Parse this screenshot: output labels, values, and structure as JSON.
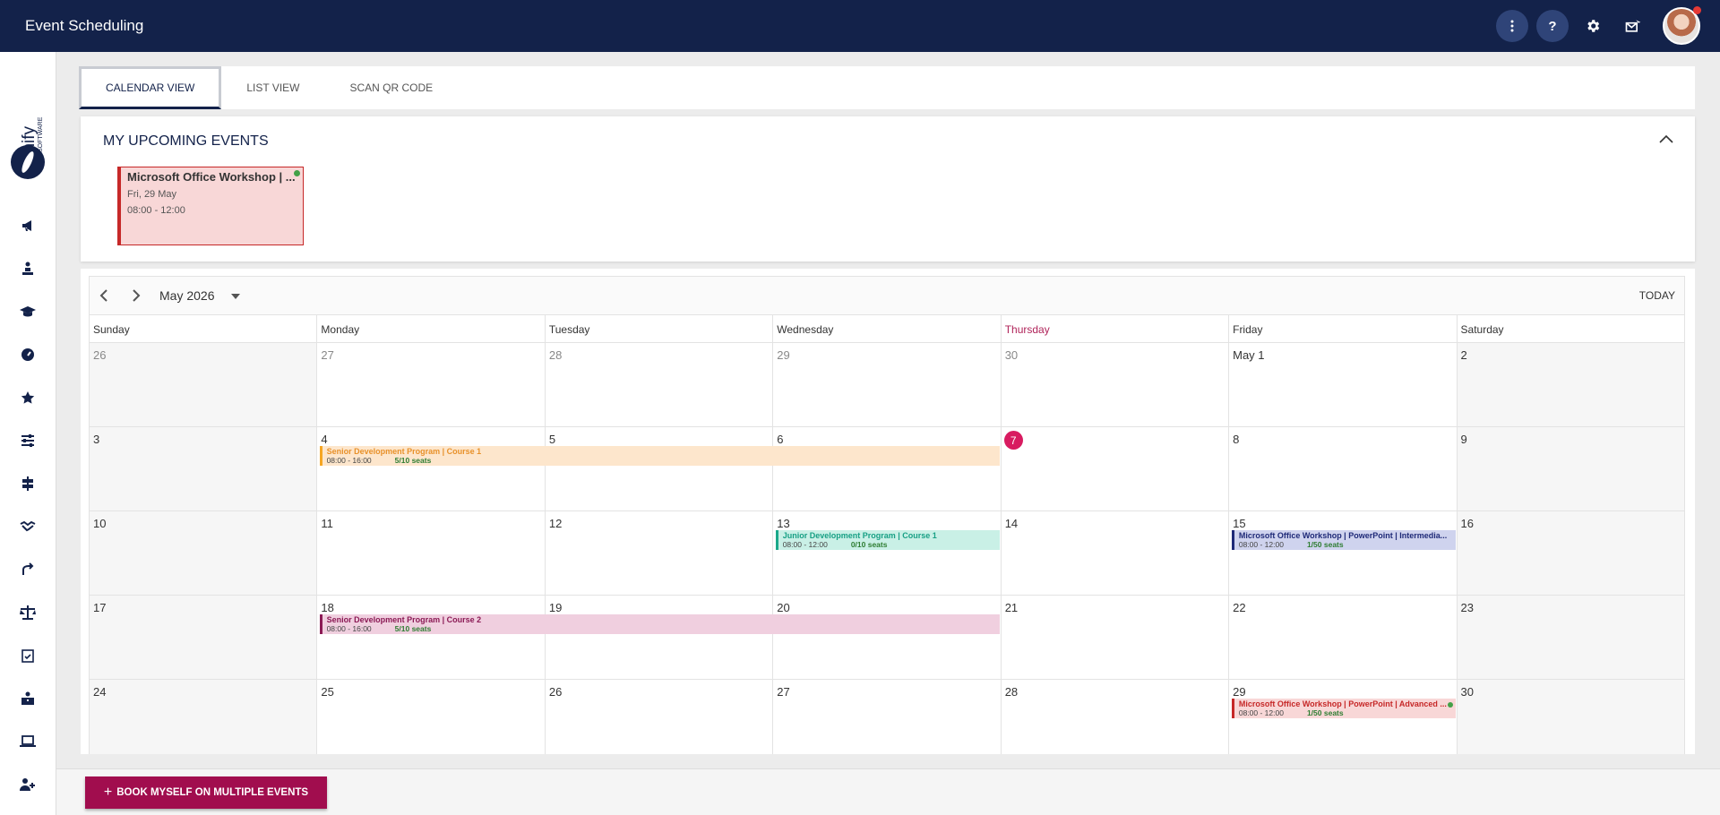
{
  "header": {
    "title": "Event Scheduling",
    "more_icon": "more-vert-icon",
    "help_label": "?",
    "settings_icon": "gear-icon",
    "mail_icon": "mail-icon"
  },
  "sidebar": {
    "logo_text": "Signify",
    "logo_sub": "SOFTWARE",
    "items": [
      {
        "icon": "megaphone-icon"
      },
      {
        "icon": "person-podium-icon"
      },
      {
        "icon": "graduation-cap-icon"
      },
      {
        "icon": "dashboard-gauge-icon"
      },
      {
        "icon": "star-icon"
      },
      {
        "icon": "sliders-icon"
      },
      {
        "icon": "signpost-icon"
      },
      {
        "icon": "handshake-icon"
      },
      {
        "icon": "route-icon"
      },
      {
        "icon": "scale-icon"
      },
      {
        "icon": "checklist-icon"
      },
      {
        "icon": "briefcase-person-icon"
      },
      {
        "icon": "laptop-icon"
      },
      {
        "icon": "add-user-icon"
      }
    ]
  },
  "tabs": [
    {
      "label": "CALENDAR VIEW",
      "active": true
    },
    {
      "label": "LIST VIEW",
      "active": false
    },
    {
      "label": "SCAN QR CODE",
      "active": false
    }
  ],
  "upcoming": {
    "title": "MY UPCOMING EVENTS",
    "events": [
      {
        "title": "Microsoft Office Workshop | ...",
        "date": "Fri, 29 May",
        "time": "08:00 - 12:00"
      }
    ]
  },
  "calendar": {
    "month_label": "May 2026",
    "today_label": "TODAY",
    "weekdays": [
      "Sunday",
      "Monday",
      "Tuesday",
      "Wednesday",
      "Thursday",
      "Friday",
      "Saturday"
    ],
    "today_weekday_index": 4,
    "weeks": [
      [
        {
          "d": "26",
          "other": true
        },
        {
          "d": "27",
          "other": true
        },
        {
          "d": "28",
          "other": true
        },
        {
          "d": "29",
          "other": true
        },
        {
          "d": "30",
          "other": true
        },
        {
          "d": "May 1"
        },
        {
          "d": "2"
        }
      ],
      [
        {
          "d": "3"
        },
        {
          "d": "4"
        },
        {
          "d": "5"
        },
        {
          "d": "6"
        },
        {
          "d": "7",
          "today": true
        },
        {
          "d": "8"
        },
        {
          "d": "9"
        }
      ],
      [
        {
          "d": "10"
        },
        {
          "d": "11"
        },
        {
          "d": "12"
        },
        {
          "d": "13"
        },
        {
          "d": "14"
        },
        {
          "d": "15"
        },
        {
          "d": "16"
        }
      ],
      [
        {
          "d": "17"
        },
        {
          "d": "18"
        },
        {
          "d": "19"
        },
        {
          "d": "20"
        },
        {
          "d": "21"
        },
        {
          "d": "22"
        },
        {
          "d": "23"
        }
      ],
      [
        {
          "d": "24"
        },
        {
          "d": "25"
        },
        {
          "d": "26"
        },
        {
          "d": "27"
        },
        {
          "d": "28"
        },
        {
          "d": "29"
        },
        {
          "d": "30"
        }
      ]
    ],
    "events": [
      {
        "title": "Senior Development Program | Course 1",
        "time": "08:00 - 16:00",
        "seats": "5/10 seats",
        "week": 1,
        "start_day": 1,
        "span": 3,
        "color": "#f5a623",
        "bg": "#fde6cc",
        "title_color": "#e8912a"
      },
      {
        "title": "Junior Development Program | Course 1",
        "time": "08:00 - 12:00",
        "seats": "0/10 seats",
        "week": 2,
        "start_day": 3,
        "span": 1,
        "color": "#1aa88a",
        "bg": "#c9f0e6",
        "title_color": "#18a085"
      },
      {
        "title": "Microsoft Office Workshop | PowerPoint | Intermedia...",
        "time": "08:00 - 12:00",
        "seats": "1/50 seats",
        "week": 2,
        "start_day": 5,
        "span": 1,
        "color": "#1f2a78",
        "bg": "#cfd3ee",
        "title_color": "#1f2a78"
      },
      {
        "title": "Senior Development Program | Course 2",
        "time": "08:00 - 16:00",
        "seats": "5/10 seats",
        "week": 3,
        "start_day": 1,
        "span": 3,
        "color": "#8b1a55",
        "bg": "#f0cfdf",
        "title_color": "#8b1a55"
      },
      {
        "title": "Microsoft Office Workshop | PowerPoint | Advanced ...",
        "time": "08:00 - 12:00",
        "seats": "1/50 seats",
        "week": 4,
        "start_day": 5,
        "span": 1,
        "color": "#c62828",
        "bg": "#f8d7d7",
        "title_color": "#c62828",
        "dot": true
      }
    ]
  },
  "footer": {
    "book_label": "BOOK MYSELF ON MULTIPLE EVENTS"
  }
}
